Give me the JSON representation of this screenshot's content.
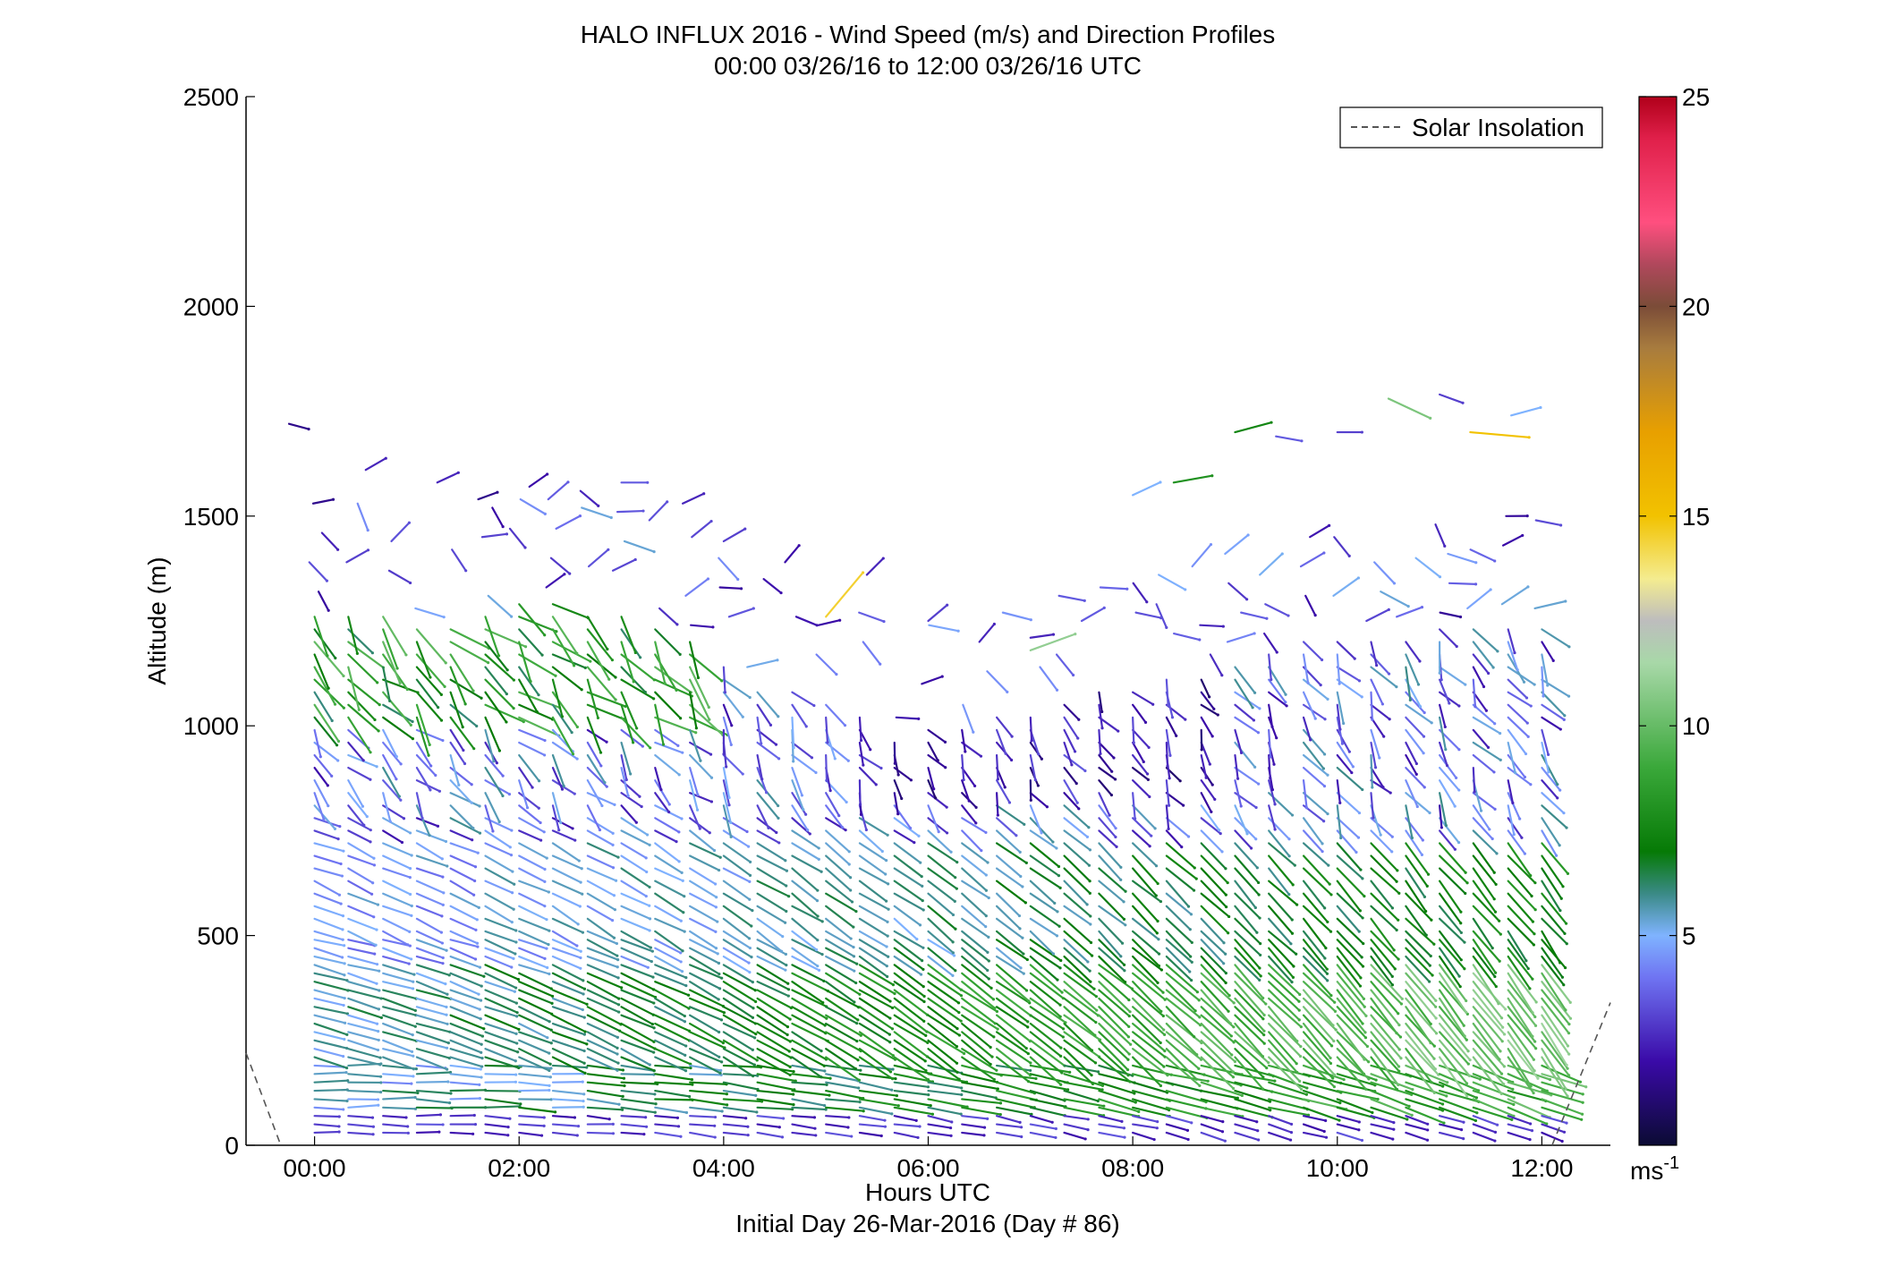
{
  "chart_data": {
    "type": "wind barb profile (quiver)",
    "title": "HALO INFLUX 2016 - Wind Speed (m/s) and Direction Profiles",
    "subtitle": "00:00 03/26/16 to 12:00 03/26/16  UTC",
    "xlabel": "Hours UTC",
    "xlabel2": "Initial Day 26-Mar-2016 (Day # 86)",
    "ylabel": "Altitude (m)",
    "x_ticks": [
      "00:00",
      "02:00",
      "04:00",
      "06:00",
      "08:00",
      "10:00",
      "12:00"
    ],
    "y_ticks": [
      "0",
      "500",
      "1000",
      "1500",
      "2000",
      "2500"
    ],
    "xlim_hours": [
      -0.67,
      12.67
    ],
    "ylim": [
      0,
      2500
    ],
    "legend": {
      "entries": [
        "Solar Insolation"
      ],
      "placement": "top-right"
    },
    "colorbar": {
      "ticks": [
        "5",
        "10",
        "15",
        "20",
        "25"
      ],
      "unit_label": "ms",
      "unit_exp": "-1",
      "range": [
        0,
        25
      ],
      "stops": [
        {
          "v": 0,
          "c": "#0b0b33"
        },
        {
          "v": 2,
          "c": "#3a0aa8"
        },
        {
          "v": 4,
          "c": "#6f74f2"
        },
        {
          "v": 5,
          "c": "#7fb3ff"
        },
        {
          "v": 6,
          "c": "#3a8a86"
        },
        {
          "v": 7,
          "c": "#067a06"
        },
        {
          "v": 9,
          "c": "#3aa83a"
        },
        {
          "v": 11.5,
          "c": "#a8d8a8"
        },
        {
          "v": 12.5,
          "c": "#bdbdbd"
        },
        {
          "v": 13.5,
          "c": "#f4ec90"
        },
        {
          "v": 15,
          "c": "#f2c200"
        },
        {
          "v": 17,
          "c": "#e8a000"
        },
        {
          "v": 19,
          "c": "#a87c3e"
        },
        {
          "v": 20,
          "c": "#7b4c38"
        },
        {
          "v": 21,
          "c": "#b0485c"
        },
        {
          "v": 22,
          "c": "#ff4f7f"
        },
        {
          "v": 24,
          "c": "#e0204a"
        },
        {
          "v": 25,
          "c": "#b0001a"
        }
      ]
    },
    "solar_insolation": {
      "style": "dashed",
      "color": "#555555",
      "points_left": [
        [
          -0.67,
          220
        ],
        [
          -0.33,
          0
        ]
      ],
      "points_right": [
        [
          12.1,
          0
        ],
        [
          12.67,
          340
        ]
      ]
    },
    "profiles": {
      "times_hours": [
        0.0,
        0.33,
        0.67,
        1.0,
        1.33,
        1.67,
        2.0,
        2.33,
        2.67,
        3.0,
        3.33,
        3.67,
        4.0,
        4.33,
        4.67,
        5.0,
        5.33,
        5.67,
        6.0,
        6.33,
        6.67,
        7.0,
        7.33,
        7.67,
        8.0,
        8.33,
        8.67,
        9.0,
        9.33,
        9.67,
        10.0,
        10.33,
        10.67,
        11.0,
        11.33,
        11.67,
        12.0
      ],
      "altitudes_m": [
        30,
        60,
        90,
        120,
        150,
        180,
        210,
        240,
        270,
        300,
        330,
        360,
        390,
        420,
        450,
        480,
        510,
        540,
        570,
        600,
        630,
        660,
        690,
        720,
        750,
        780,
        810,
        840,
        870,
        900,
        930,
        960,
        990,
        1020,
        1050,
        1080,
        1110,
        1140,
        1170,
        1200
      ],
      "top_altitude_m": [
        1280,
        1280,
        1260,
        1240,
        1240,
        1270,
        1290,
        1290,
        1270,
        1260,
        1240,
        1200,
        1150,
        1100,
        1080,
        1060,
        1020,
        980,
        990,
        1010,
        1020,
        1030,
        1060,
        1080,
        1090,
        1110,
        1130,
        1160,
        1180,
        1200,
        1200,
        1210,
        1220,
        1230,
        1240,
        1250,
        1240
      ],
      "direction_regimes": [
        {
          "alt_range": [
            0,
            400
          ],
          "from_deg_start": 270,
          "from_deg_end": 300
        },
        {
          "alt_range": [
            400,
            800
          ],
          "from_deg_start": 285,
          "from_deg_end": 320
        },
        {
          "alt_range": [
            800,
            1300
          ],
          "from_deg_start": 300,
          "from_deg_end": 340
        }
      ],
      "speed_profile_description": "lighter near surface (~2-4 m/s), maximum ~7-11 m/s between 100 and 500 m, 3-6 m/s aloft; sparse strong barbs up to ~15 m/s near 1300-1700 m"
    },
    "upper_sparse_barbs": [
      {
        "t": -0.25,
        "alt": 1720,
        "spd": 1.5,
        "dir": 285
      },
      {
        "t": 0.5,
        "alt": 1610,
        "spd": 2.5,
        "dir": 240
      },
      {
        "t": 1.2,
        "alt": 1580,
        "spd": 2.5,
        "dir": 245
      },
      {
        "t": 1.6,
        "alt": 1540,
        "spd": 1.5,
        "dir": 250
      },
      {
        "t": 2.1,
        "alt": 1570,
        "spd": 2.0,
        "dir": 235
      },
      {
        "t": 2.6,
        "alt": 1560,
        "spd": 2.5,
        "dir": 310
      },
      {
        "t": 3.0,
        "alt": 1580,
        "spd": 3.5,
        "dir": 270
      },
      {
        "t": 3.6,
        "alt": 1530,
        "spd": 2.5,
        "dir": 245
      },
      {
        "t": 4.0,
        "alt": 1440,
        "spd": 3.0,
        "dir": 240
      },
      {
        "t": 4.6,
        "alt": 1390,
        "spd": 2.0,
        "dir": 220
      },
      {
        "t": 5.0,
        "alt": 1260,
        "spd": 14.5,
        "dir": 220
      },
      {
        "t": 5.4,
        "alt": 1360,
        "spd": 2.5,
        "dir": 225
      },
      {
        "t": 6.0,
        "alt": 1250,
        "spd": 3.0,
        "dir": 230
      },
      {
        "t": 6.5,
        "alt": 1200,
        "spd": 2.5,
        "dir": 220
      },
      {
        "t": 7.0,
        "alt": 1180,
        "spd": 11.0,
        "dir": 250
      },
      {
        "t": 7.5,
        "alt": 1250,
        "spd": 3.5,
        "dir": 240
      },
      {
        "t": 8.0,
        "alt": 1550,
        "spd": 5.0,
        "dir": 245
      },
      {
        "t": 8.4,
        "alt": 1580,
        "spd": 8.0,
        "dir": 260
      },
      {
        "t": 9.0,
        "alt": 1700,
        "spd": 7.5,
        "dir": 255
      },
      {
        "t": 9.4,
        "alt": 1690,
        "spd": 3.5,
        "dir": 280
      },
      {
        "t": 10.0,
        "alt": 1700,
        "spd": 3.0,
        "dir": 270
      },
      {
        "t": 10.5,
        "alt": 1780,
        "spd": 10.5,
        "dir": 295
      },
      {
        "t": 11.0,
        "alt": 1790,
        "spd": 3.0,
        "dir": 290
      },
      {
        "t": 11.3,
        "alt": 1700,
        "spd": 15.0,
        "dir": 275
      },
      {
        "t": 11.7,
        "alt": 1740,
        "spd": 5.0,
        "dir": 255
      }
    ]
  }
}
